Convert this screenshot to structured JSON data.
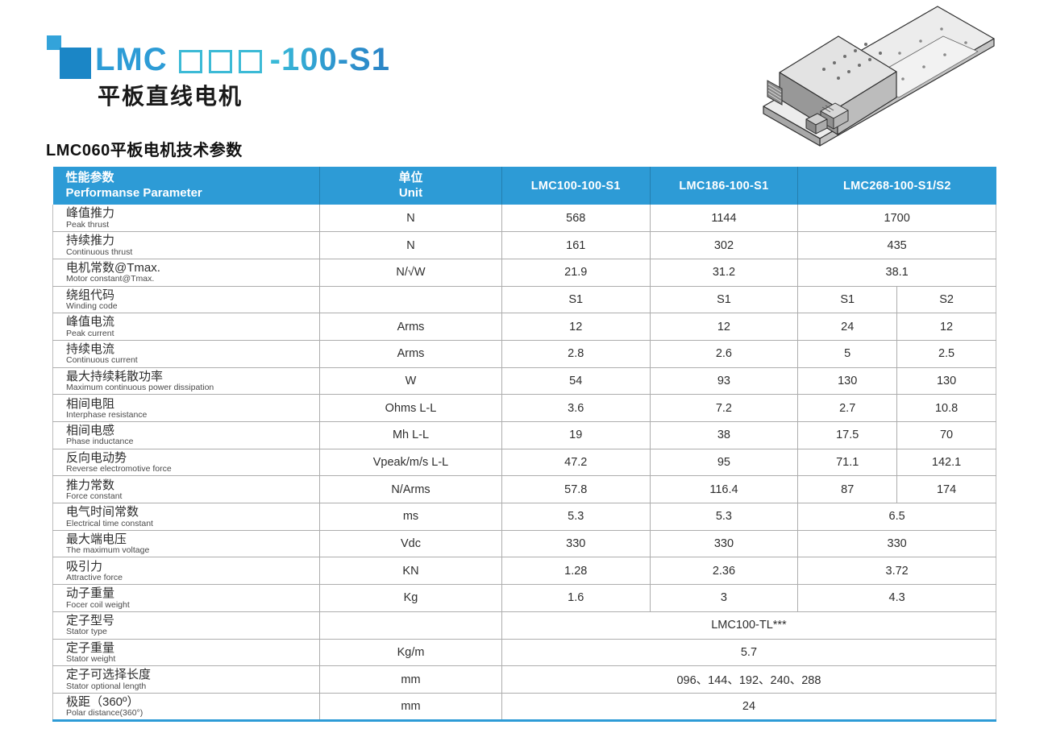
{
  "brand": {
    "title_prefix": "LMC",
    "title_box_count": 3,
    "title_suffix": "-100-S1",
    "subtitle": "平板直线电机"
  },
  "section_title": "LMC060平板电机技术参数",
  "colors": {
    "header_blue": "#2D9BD6",
    "title_blue": "#2D9CD6",
    "title_cyan": "#3CBAD6",
    "logo_small_square": "#33A3DA",
    "logo_large_square": "#1B86C6",
    "grid_gray": "#ADADAD"
  },
  "product_image": {
    "name": "flat-linear-motor-isometric-drawing"
  },
  "table": {
    "header": {
      "param_zh": "性能参数",
      "param_en": "Performanse Parameter",
      "unit_zh": "单位",
      "unit_en": "Unit",
      "models": [
        "LMC100-100-S1",
        "LMC186-100-S1",
        "LMC268-100-S1/S2"
      ]
    },
    "rows": [
      {
        "zh": "峰值推力",
        "en": "Peak thrust",
        "unit": "N",
        "cells": [
          {
            "t": "568",
            "cs": 1
          },
          {
            "t": "1144",
            "cs": 1
          },
          {
            "t": "1700",
            "cs": 2
          }
        ]
      },
      {
        "zh": "持续推力",
        "en": "Continuous thrust",
        "unit": "N",
        "cells": [
          {
            "t": "161",
            "cs": 1
          },
          {
            "t": "302",
            "cs": 1
          },
          {
            "t": "435",
            "cs": 2
          }
        ]
      },
      {
        "zh": "电机常数@Tmax.",
        "en": "Motor constant@Tmax.",
        "unit": "N/√W",
        "cells": [
          {
            "t": "21.9",
            "cs": 1
          },
          {
            "t": "31.2",
            "cs": 1
          },
          {
            "t": "38.1",
            "cs": 2
          }
        ]
      },
      {
        "zh": "绕组代码",
        "en": "Winding code",
        "unit": "",
        "cells": [
          {
            "t": "S1",
            "cs": 1
          },
          {
            "t": "S1",
            "cs": 1
          },
          {
            "t": "S1",
            "cs": 1
          },
          {
            "t": "S2",
            "cs": 1
          }
        ]
      },
      {
        "zh": "峰值电流",
        "en": "Peak current",
        "unit": "Arms",
        "cells": [
          {
            "t": "12",
            "cs": 1
          },
          {
            "t": "12",
            "cs": 1
          },
          {
            "t": "24",
            "cs": 1
          },
          {
            "t": "12",
            "cs": 1
          }
        ]
      },
      {
        "zh": "持续电流",
        "en": "Continuous current",
        "unit": "Arms",
        "cells": [
          {
            "t": "2.8",
            "cs": 1
          },
          {
            "t": "2.6",
            "cs": 1
          },
          {
            "t": "5",
            "cs": 1
          },
          {
            "t": "2.5",
            "cs": 1
          }
        ]
      },
      {
        "zh": "最大持续耗散功率",
        "en": "Maximum continuous power dissipation",
        "unit": "W",
        "cells": [
          {
            "t": "54",
            "cs": 1
          },
          {
            "t": "93",
            "cs": 1
          },
          {
            "t": "130",
            "cs": 1
          },
          {
            "t": "130",
            "cs": 1
          }
        ]
      },
      {
        "zh": "相间电阻",
        "en": "Interphase resistance",
        "unit": "Ohms L-L",
        "cells": [
          {
            "t": "3.6",
            "cs": 1
          },
          {
            "t": "7.2",
            "cs": 1
          },
          {
            "t": "2.7",
            "cs": 1
          },
          {
            "t": "10.8",
            "cs": 1
          }
        ]
      },
      {
        "zh": "相间电感",
        "en": "Phase inductance",
        "unit": "Mh L-L",
        "cells": [
          {
            "t": "19",
            "cs": 1
          },
          {
            "t": "38",
            "cs": 1
          },
          {
            "t": "17.5",
            "cs": 1
          },
          {
            "t": "70",
            "cs": 1
          }
        ]
      },
      {
        "zh": "反向电动势",
        "en": "Reverse electromotive force",
        "unit": "Vpeak/m/s L-L",
        "cells": [
          {
            "t": "47.2",
            "cs": 1
          },
          {
            "t": "95",
            "cs": 1
          },
          {
            "t": "71.1",
            "cs": 1
          },
          {
            "t": "142.1",
            "cs": 1
          }
        ]
      },
      {
        "zh": "推力常数",
        "en": "Force constant",
        "unit": "N/Arms",
        "cells": [
          {
            "t": "57.8",
            "cs": 1
          },
          {
            "t": "116.4",
            "cs": 1
          },
          {
            "t": "87",
            "cs": 1
          },
          {
            "t": "174",
            "cs": 1
          }
        ]
      },
      {
        "zh": "电气时间常数",
        "en": "Electrical time constant",
        "unit": "ms",
        "cells": [
          {
            "t": "5.3",
            "cs": 1
          },
          {
            "t": "5.3",
            "cs": 1
          },
          {
            "t": "6.5",
            "cs": 2
          }
        ]
      },
      {
        "zh": "最大端电压",
        "en": "The maximum voltage",
        "unit": "Vdc",
        "cells": [
          {
            "t": "330",
            "cs": 1
          },
          {
            "t": "330",
            "cs": 1
          },
          {
            "t": "330",
            "cs": 2
          }
        ]
      },
      {
        "zh": "吸引力",
        "en": "Attractive force",
        "unit": "KN",
        "cells": [
          {
            "t": "1.28",
            "cs": 1
          },
          {
            "t": "2.36",
            "cs": 1
          },
          {
            "t": "3.72",
            "cs": 2
          }
        ]
      },
      {
        "zh": "动子重量",
        "en": "Focer coil weight",
        "unit": "Kg",
        "cells": [
          {
            "t": "1.6",
            "cs": 1
          },
          {
            "t": "3",
            "cs": 1
          },
          {
            "t": "4.3",
            "cs": 2
          }
        ]
      },
      {
        "zh": "定子型号",
        "en": "Stator type",
        "unit": "",
        "cells": [
          {
            "t": "LMC100-TL***",
            "cs": 4
          }
        ]
      },
      {
        "zh": "定子重量",
        "en": "Stator weight",
        "unit": "Kg/m",
        "cells": [
          {
            "t": "5.7",
            "cs": 4
          }
        ]
      },
      {
        "zh": "定子可选择长度",
        "en": "Stator optional length",
        "unit": "mm",
        "cells": [
          {
            "t": "096、144、192、240、288",
            "cs": 4
          }
        ]
      },
      {
        "zh": "极距（360º）",
        "en": "Polar distance(360°)",
        "unit": "mm",
        "cells": [
          {
            "t": "24",
            "cs": 4
          }
        ]
      }
    ]
  }
}
